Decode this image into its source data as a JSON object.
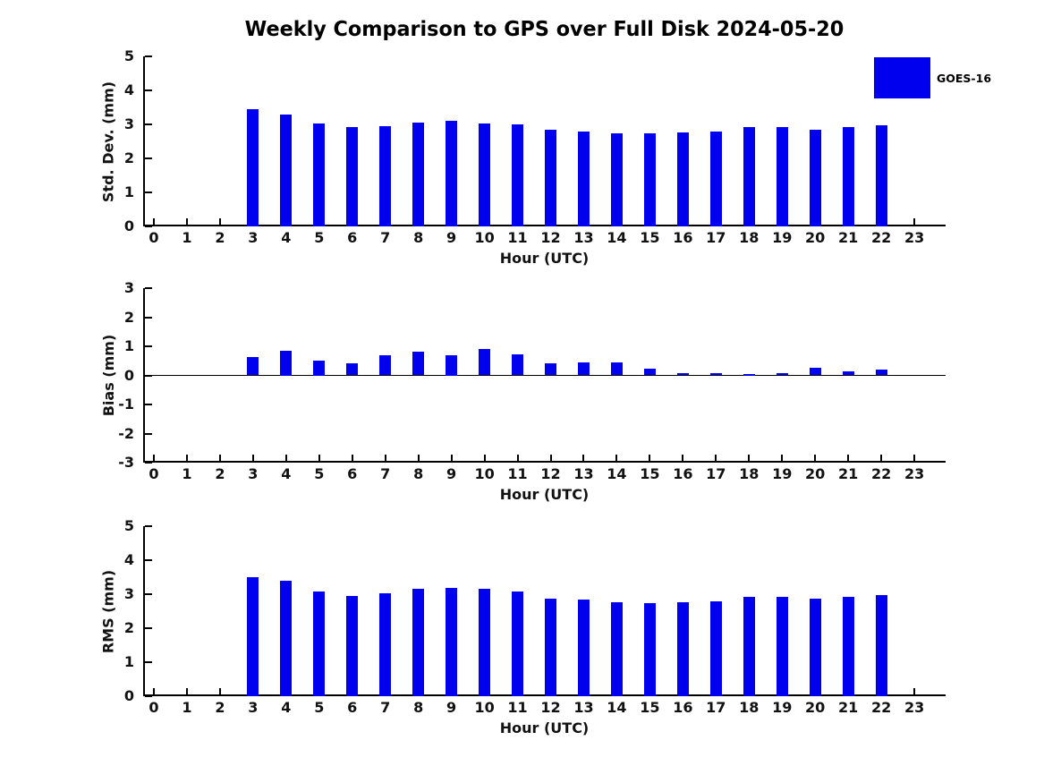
{
  "title": "Weekly Comparison to GPS over Full Disk 2024-05-20",
  "legend": {
    "label": "GOES-16",
    "color": "#0000ee"
  },
  "chart_data": [
    {
      "type": "bar",
      "title": "",
      "series_name": "GOES-16",
      "color": "#0000ee",
      "ylabel": "Std. Dev. (mm)",
      "xlabel": "Hour (UTC)",
      "ylim": [
        0,
        5
      ],
      "yticks": [
        0,
        1,
        2,
        3,
        4,
        5
      ],
      "x": [
        0,
        1,
        2,
        3,
        4,
        5,
        6,
        7,
        8,
        9,
        10,
        11,
        12,
        13,
        14,
        15,
        16,
        17,
        18,
        19,
        20,
        21,
        22,
        23
      ],
      "values": [
        null,
        null,
        null,
        3.45,
        3.3,
        3.03,
        2.92,
        2.95,
        3.06,
        3.11,
        3.03,
        3.0,
        2.85,
        2.8,
        2.74,
        2.74,
        2.77,
        2.8,
        2.93,
        2.92,
        2.85,
        2.92,
        2.97,
        null
      ],
      "grid": false,
      "legend_position": "upper-right-outside"
    },
    {
      "type": "bar",
      "title": "",
      "series_name": "GOES-16",
      "color": "#0000ee",
      "ylabel": "Bias (mm)",
      "xlabel": "Hour (UTC)",
      "ylim": [
        -3,
        3
      ],
      "yticks": [
        -3,
        -2,
        -1,
        0,
        1,
        2,
        3
      ],
      "zero_line": true,
      "x": [
        0,
        1,
        2,
        3,
        4,
        5,
        6,
        7,
        8,
        9,
        10,
        11,
        12,
        13,
        14,
        15,
        16,
        17,
        18,
        19,
        20,
        21,
        22,
        23
      ],
      "values": [
        null,
        null,
        null,
        0.62,
        0.85,
        0.5,
        0.43,
        0.69,
        0.81,
        0.7,
        0.92,
        0.73,
        0.43,
        0.46,
        0.46,
        0.23,
        0.08,
        0.09,
        0.05,
        0.08,
        0.27,
        0.14,
        0.19,
        null
      ],
      "grid": false
    },
    {
      "type": "bar",
      "title": "",
      "series_name": "GOES-16",
      "color": "#0000ee",
      "ylabel": "RMS (mm)",
      "xlabel": "Hour (UTC)",
      "ylim": [
        0,
        5
      ],
      "yticks": [
        0,
        1,
        2,
        3,
        4,
        5
      ],
      "x": [
        0,
        1,
        2,
        3,
        4,
        5,
        6,
        7,
        8,
        9,
        10,
        11,
        12,
        13,
        14,
        15,
        16,
        17,
        18,
        19,
        20,
        21,
        22,
        23
      ],
      "values": [
        null,
        null,
        null,
        3.5,
        3.39,
        3.08,
        2.95,
        3.02,
        3.15,
        3.18,
        3.15,
        3.08,
        2.87,
        2.84,
        2.76,
        2.73,
        2.76,
        2.79,
        2.92,
        2.92,
        2.87,
        2.92,
        2.97,
        null
      ],
      "grid": false
    }
  ]
}
